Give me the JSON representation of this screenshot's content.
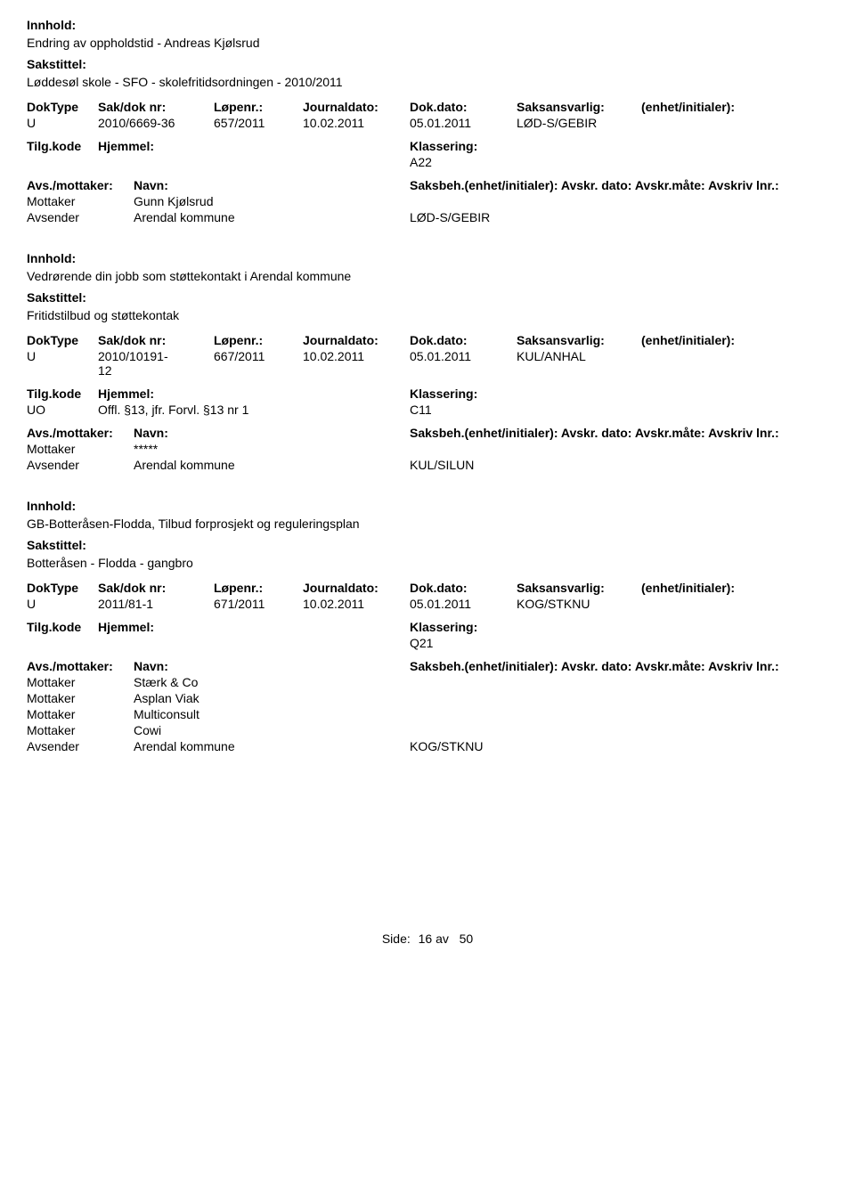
{
  "labels": {
    "innhold": "Innhold:",
    "sakstittel": "Sakstittel:",
    "doktype": "DokType",
    "sakdok": "Sak/dok nr:",
    "lopenr": "Løpenr.:",
    "journaldato": "Journaldato:",
    "dokdato": "Dok.dato:",
    "saksansvarlig": "Saksansvarlig:",
    "initialer": "(enhet/initialer):",
    "tilgkode": "Tilg.kode",
    "hjemmel": "Hjemmel:",
    "klassering": "Klassering:",
    "avs_mottaker": "Avs./mottaker:",
    "navn": "Navn:",
    "saksbeh": "Saksbeh.(enhet/initialer): Avskr. dato:  Avskr.måte:  Avskriv lnr.:",
    "mottaker": "Mottaker",
    "avsender": "Avsender"
  },
  "entries": [
    {
      "innhold": "Endring av oppholdstid - Andreas Kjølsrud",
      "sakstittel": "Løddesøl skole - SFO - skolefritidsordningen - 2010/2011",
      "doktype": "U",
      "sakdok": "2010/6669-36",
      "sakdok2": "",
      "lopenr": "657/2011",
      "journaldato": "10.02.2011",
      "dokdato": "05.01.2011",
      "saksansvarlig": "LØD-S/GEBIR",
      "tilgkode": "",
      "hjemmel": "",
      "klassering": "A22",
      "mottakere": [
        {
          "navn": "Gunn Kjølsrud"
        }
      ],
      "avsender_navn": "Arendal kommune",
      "avsender_code": "LØD-S/GEBIR"
    },
    {
      "innhold": "Vedrørende din jobb som støttekontakt i Arendal kommune",
      "sakstittel": "Fritidstilbud og støttekontak",
      "doktype": "U",
      "sakdok": "2010/10191-",
      "sakdok2": "12",
      "lopenr": "667/2011",
      "journaldato": "10.02.2011",
      "dokdato": "05.01.2011",
      "saksansvarlig": "KUL/ANHAL",
      "tilgkode": "UO",
      "hjemmel": "Offl. §13, jfr. Forvl. §13 nr 1",
      "klassering": "C11",
      "mottakere": [
        {
          "navn": "*****"
        }
      ],
      "avsender_navn": "Arendal kommune",
      "avsender_code": "KUL/SILUN"
    },
    {
      "innhold": "GB-Botteråsen-Flodda, Tilbud forprosjekt og reguleringsplan",
      "sakstittel": "Botteråsen - Flodda - gangbro",
      "doktype": "U",
      "sakdok": "2011/81-1",
      "sakdok2": "",
      "lopenr": "671/2011",
      "journaldato": "10.02.2011",
      "dokdato": "05.01.2011",
      "saksansvarlig": "KOG/STKNU",
      "tilgkode": "",
      "hjemmel": "",
      "klassering": "Q21",
      "mottakere": [
        {
          "navn": "Stærk & Co"
        },
        {
          "navn": "Asplan Viak"
        },
        {
          "navn": "Multiconsult"
        },
        {
          "navn": "Cowi"
        }
      ],
      "avsender_navn": "Arendal kommune",
      "avsender_code": "KOG/STKNU"
    }
  ],
  "footer": {
    "side_label": "Side:",
    "page": "16",
    "av": "av",
    "total": "50"
  }
}
